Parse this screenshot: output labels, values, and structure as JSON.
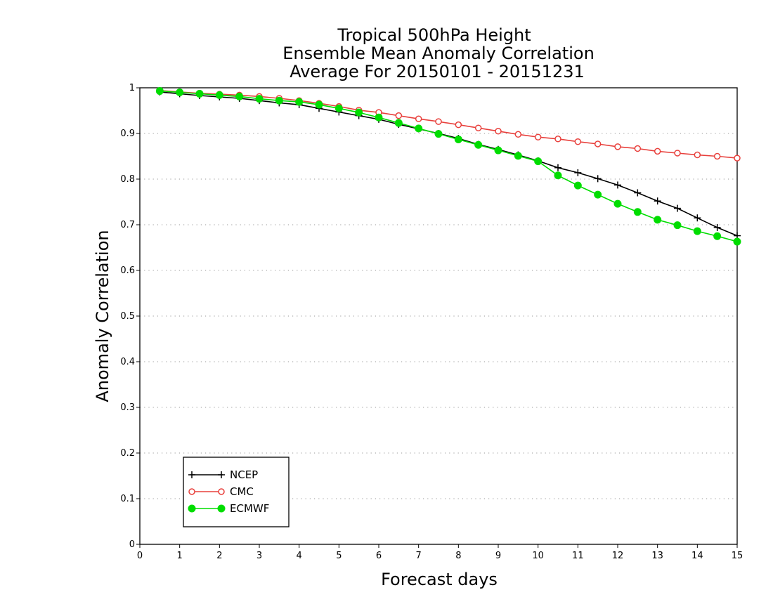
{
  "chart_data": {
    "type": "line",
    "title": [
      "Tropical 500hPa Height",
      "Ensemble Mean Anomaly Correlation",
      "Average For 20150101 - 20151231"
    ],
    "xlabel": "Forecast days",
    "ylabel": "Anomaly Correlation",
    "xlim": [
      0,
      15
    ],
    "ylim": [
      0,
      1
    ],
    "xticks": [
      0,
      1,
      2,
      3,
      4,
      5,
      6,
      7,
      8,
      9,
      10,
      11,
      12,
      13,
      14,
      15
    ],
    "yticks": [
      0,
      0.1,
      0.2,
      0.3,
      0.4,
      0.5,
      0.6,
      0.7,
      0.8,
      0.9,
      1
    ],
    "ytick_labels": [
      "0",
      "0.1",
      "0.2",
      "0.3",
      "0.4",
      "0.5",
      "0.6",
      "0.7",
      "0.8",
      "0.9",
      "1"
    ],
    "grid": "horizontal dotted",
    "legend_position": "bottom-left",
    "x": [
      0.5,
      1,
      1.5,
      2,
      2.5,
      3,
      3.5,
      4,
      4.5,
      5,
      5.5,
      6,
      6.5,
      7,
      7.5,
      8,
      8.5,
      9,
      9.5,
      10,
      10.5,
      11,
      11.5,
      12,
      12.5,
      13,
      13.5,
      14,
      14.5,
      15
    ],
    "series": [
      {
        "name": "NCEP",
        "color": "#000000",
        "marker": "plus",
        "values": [
          0.991,
          0.987,
          0.983,
          0.98,
          0.977,
          0.972,
          0.967,
          0.963,
          0.955,
          0.947,
          0.939,
          0.931,
          0.92,
          0.91,
          0.9,
          0.889,
          0.876,
          0.865,
          0.853,
          0.84,
          0.825,
          0.814,
          0.801,
          0.787,
          0.77,
          0.752,
          0.736,
          0.715,
          0.694,
          0.676
        ]
      },
      {
        "name": "CMC",
        "color": "#e8403c",
        "marker": "open-circle",
        "values": [
          0.994,
          0.991,
          0.988,
          0.986,
          0.984,
          0.981,
          0.977,
          0.972,
          0.966,
          0.959,
          0.951,
          0.946,
          0.939,
          0.932,
          0.926,
          0.919,
          0.912,
          0.905,
          0.898,
          0.892,
          0.888,
          0.882,
          0.877,
          0.871,
          0.867,
          0.861,
          0.857,
          0.853,
          0.85,
          0.846
        ]
      },
      {
        "name": "ECMWF",
        "color": "#00dd00",
        "marker": "filled-circle",
        "values": [
          0.993,
          0.99,
          0.987,
          0.984,
          0.981,
          0.976,
          0.972,
          0.969,
          0.963,
          0.955,
          0.946,
          0.935,
          0.923,
          0.911,
          0.899,
          0.887,
          0.875,
          0.863,
          0.851,
          0.839,
          0.808,
          0.786,
          0.766,
          0.746,
          0.728,
          0.711,
          0.699,
          0.686,
          0.675,
          0.663
        ]
      }
    ]
  }
}
